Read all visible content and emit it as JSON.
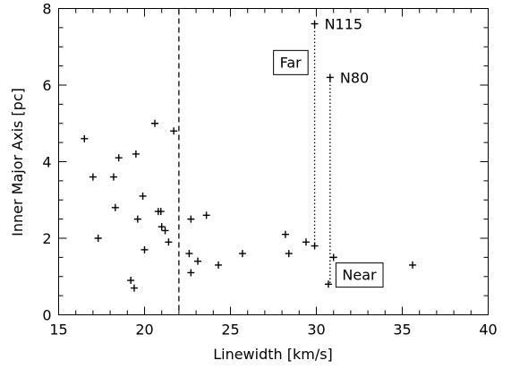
{
  "chart_data": {
    "type": "scatter",
    "title": "",
    "xlabel": "Linewidth [km/s]",
    "ylabel": "Inner Major Axis [pc]",
    "xlim": [
      15,
      40
    ],
    "ylim": [
      0,
      8
    ],
    "x_ticks": [
      15,
      20,
      25,
      30,
      35,
      40
    ],
    "y_ticks": [
      0,
      2,
      4,
      6,
      8
    ],
    "x_tick_labels": [
      "15",
      "20",
      "25",
      "30",
      "35",
      "40"
    ],
    "y_tick_labels": [
      "0",
      "2",
      "4",
      "6",
      "8"
    ],
    "grid": false,
    "marker": "+",
    "points": [
      {
        "x": 16.5,
        "y": 4.6
      },
      {
        "x": 17.0,
        "y": 3.6
      },
      {
        "x": 17.3,
        "y": 2.0
      },
      {
        "x": 18.2,
        "y": 3.6
      },
      {
        "x": 18.3,
        "y": 2.8
      },
      {
        "x": 18.5,
        "y": 4.1
      },
      {
        "x": 19.2,
        "y": 0.9
      },
      {
        "x": 19.4,
        "y": 0.7
      },
      {
        "x": 19.5,
        "y": 4.2
      },
      {
        "x": 19.6,
        "y": 2.5
      },
      {
        "x": 19.9,
        "y": 3.1
      },
      {
        "x": 20.0,
        "y": 1.7
      },
      {
        "x": 20.6,
        "y": 5.0
      },
      {
        "x": 20.8,
        "y": 2.7
      },
      {
        "x": 20.95,
        "y": 2.7
      },
      {
        "x": 21.0,
        "y": 2.3
      },
      {
        "x": 21.2,
        "y": 2.2
      },
      {
        "x": 21.4,
        "y": 1.9
      },
      {
        "x": 21.7,
        "y": 4.8
      },
      {
        "x": 22.6,
        "y": 1.6
      },
      {
        "x": 22.7,
        "y": 1.1
      },
      {
        "x": 22.7,
        "y": 2.5
      },
      {
        "x": 23.1,
        "y": 1.4
      },
      {
        "x": 23.6,
        "y": 2.6
      },
      {
        "x": 24.3,
        "y": 1.3
      },
      {
        "x": 25.7,
        "y": 1.6
      },
      {
        "x": 28.2,
        "y": 2.1
      },
      {
        "x": 28.4,
        "y": 1.6
      },
      {
        "x": 29.4,
        "y": 1.9
      },
      {
        "x": 29.9,
        "y": 1.8
      },
      {
        "x": 29.9,
        "y": 7.6
      },
      {
        "x": 30.7,
        "y": 0.8
      },
      {
        "x": 30.8,
        "y": 6.2
      },
      {
        "x": 31.0,
        "y": 1.5
      },
      {
        "x": 35.6,
        "y": 1.3
      }
    ],
    "divider": {
      "x": 22.0,
      "style": "dashed"
    },
    "point_labels": [
      {
        "text": "N115",
        "x": 29.9,
        "y": 7.6,
        "dotted_line_to_y": 1.8
      },
      {
        "text": "N80",
        "x": 30.8,
        "y": 6.2,
        "dotted_line_to_y": 0.8
      }
    ],
    "annotations": [
      {
        "text": "Far",
        "x": 28.5,
        "y": 6.6
      },
      {
        "text": "Near",
        "x": 32.5,
        "y": 1.05
      }
    ]
  }
}
